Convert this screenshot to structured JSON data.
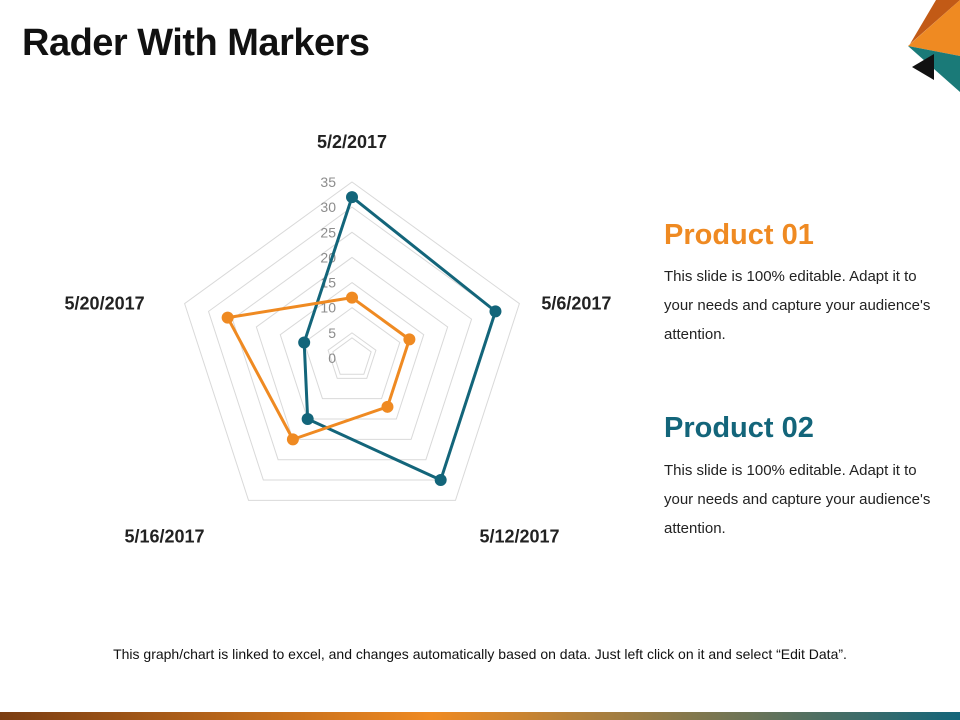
{
  "slide": {
    "title": "Rader With Markers",
    "footer_note": "This graph/chart is linked to excel, and changes automatically based on data. Just left click on it and select “Edit Data”."
  },
  "products": [
    {
      "heading": "Product 01",
      "description": "This slide is 100% editable. Adapt it to your needs and capture your audience's attention.",
      "color": "#ef8a22"
    },
    {
      "heading": "Product 02",
      "description": "This slide is 100% editable. Adapt it to your needs and capture your audience's attention.",
      "color": "#13657a"
    }
  ],
  "theme": {
    "orange": "#ef8a22",
    "teal": "#13657a",
    "grid": "#d9d9d9",
    "tick_label": "#8c8c8c",
    "category_label": "#222222"
  },
  "chart_data": {
    "type": "radar",
    "categories": [
      "5/2/2017",
      "5/6/2017",
      "5/12/2017",
      "5/16/2017",
      "5/20/2017"
    ],
    "ticks": [
      0,
      5,
      10,
      15,
      20,
      25,
      30,
      35
    ],
    "rlim": [
      0,
      35
    ],
    "grid": true,
    "legend": "none",
    "series": [
      {
        "values": [
          32,
          30,
          30,
          15,
          10
        ],
        "color": "#13657a",
        "marker": "circle"
      },
      {
        "values": [
          12,
          12,
          12,
          20,
          26
        ],
        "color": "#ef8a22",
        "marker": "circle"
      }
    ]
  }
}
